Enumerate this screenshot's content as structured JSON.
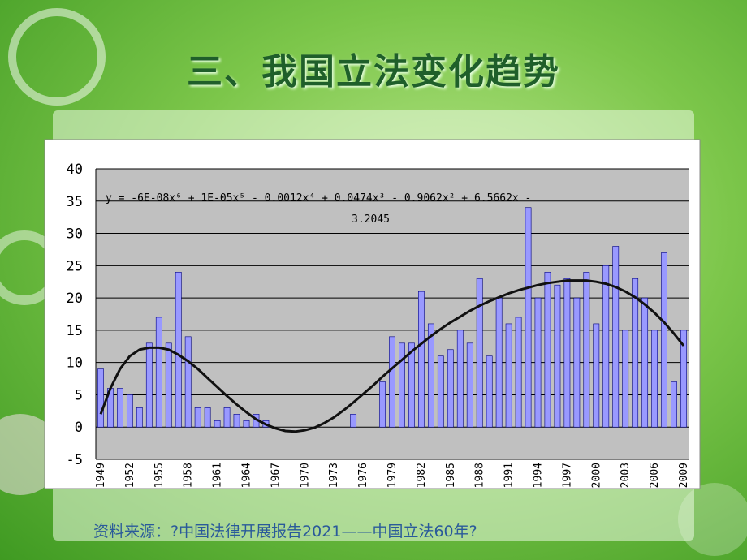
{
  "page_title": "三、我国立法变化趋势",
  "source": "资料来源：?中国法律开展报告2021——中国立法60年?",
  "chart_data": {
    "type": "bar",
    "equation": [
      "y = -6E-08x⁶ + 1E-05x⁵ - 0.0012x⁴ + 0.0474x³ - 0.9062x² + 6.5662x -",
      "3.2045"
    ],
    "categories": [
      "1949",
      null,
      null,
      "1952",
      null,
      null,
      "1955",
      null,
      null,
      "1958",
      null,
      null,
      "1961",
      null,
      null,
      "1964",
      null,
      null,
      "1967",
      null,
      null,
      "1970",
      null,
      null,
      "1973",
      null,
      null,
      "1976",
      null,
      null,
      "1979",
      null,
      null,
      "1982",
      null,
      null,
      "1985",
      null,
      null,
      "1988",
      null,
      null,
      "1991",
      null,
      null,
      "1994",
      null,
      null,
      "1997",
      null,
      null,
      "2000",
      null,
      null,
      "2003",
      null,
      null,
      "2006",
      null,
      null,
      "2009"
    ],
    "values": [
      9,
      6,
      6,
      5,
      3,
      13,
      17,
      13,
      24,
      14,
      3,
      3,
      1,
      3,
      2,
      1,
      2,
      1,
      0,
      0,
      0,
      0,
      0,
      0,
      0,
      0,
      2,
      0,
      0,
      7,
      14,
      13,
      13,
      21,
      16,
      11,
      12,
      15,
      13,
      23,
      11,
      20,
      16,
      17,
      34,
      20,
      24,
      22,
      23,
      20,
      24,
      16,
      25,
      28,
      15,
      23,
      20,
      15,
      27,
      7,
      15
    ],
    "color": "#9999ff",
    "trendline": {
      "color": "#111111",
      "values": [
        2,
        6,
        9,
        11,
        12,
        12.3,
        12.3,
        12,
        11.2,
        10.2,
        9,
        7.6,
        6.2,
        4.8,
        3.5,
        2.3,
        1.2,
        0.4,
        -0.2,
        -0.6,
        -0.7,
        -0.5,
        -0.1,
        0.6,
        1.5,
        2.6,
        3.8,
        5.1,
        6.4,
        7.8,
        9.1,
        10.4,
        11.7,
        12.9,
        14.1,
        15.2,
        16.2,
        17.1,
        18,
        18.8,
        19.5,
        20.1,
        20.7,
        21.2,
        21.6,
        22,
        22.3,
        22.5,
        22.7,
        22.7,
        22.7,
        22.5,
        22.2,
        21.7,
        21,
        20.1,
        19,
        17.7,
        16.2,
        14.5,
        12.6
      ]
    },
    "ylim": [
      -5,
      40
    ],
    "yticks": [
      -5,
      0,
      5,
      10,
      15,
      20,
      25,
      30,
      35,
      40
    ],
    "grid": true
  }
}
